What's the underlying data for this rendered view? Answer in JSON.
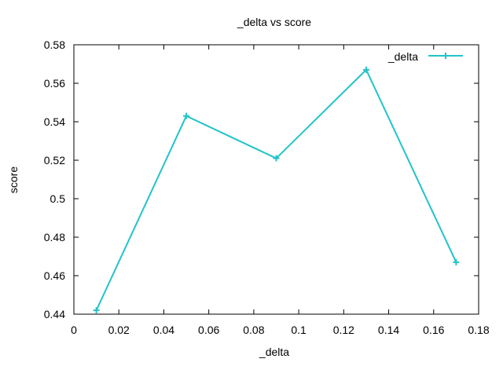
{
  "chart_data": {
    "type": "line",
    "title": "_delta vs score",
    "xlabel": "_delta",
    "ylabel": "score",
    "xlim": [
      0,
      0.18
    ],
    "ylim": [
      0.44,
      0.58
    ],
    "xticks": [
      0,
      0.02,
      0.04,
      0.06,
      0.08,
      0.1,
      0.12,
      0.14,
      0.16,
      0.18
    ],
    "xtick_labels": [
      "0",
      "0.02",
      "0.04",
      "0.06",
      "0.08",
      "0.1",
      "0.12",
      "0.14",
      "0.16",
      "0.18"
    ],
    "yticks": [
      0.44,
      0.46,
      0.48,
      0.5,
      0.52,
      0.54,
      0.56,
      0.58
    ],
    "ytick_labels": [
      "0.44",
      "0.46",
      "0.48",
      "0.5",
      "0.52",
      "0.54",
      "0.56",
      "0.58"
    ],
    "grid": false,
    "legend_position": "top-right",
    "series": [
      {
        "name": "_delta",
        "color": "#22c3c8",
        "marker": "plus",
        "x": [
          0.01,
          0.05,
          0.09,
          0.13,
          0.17
        ],
        "y": [
          0.442,
          0.543,
          0.521,
          0.567,
          0.467
        ]
      }
    ]
  }
}
